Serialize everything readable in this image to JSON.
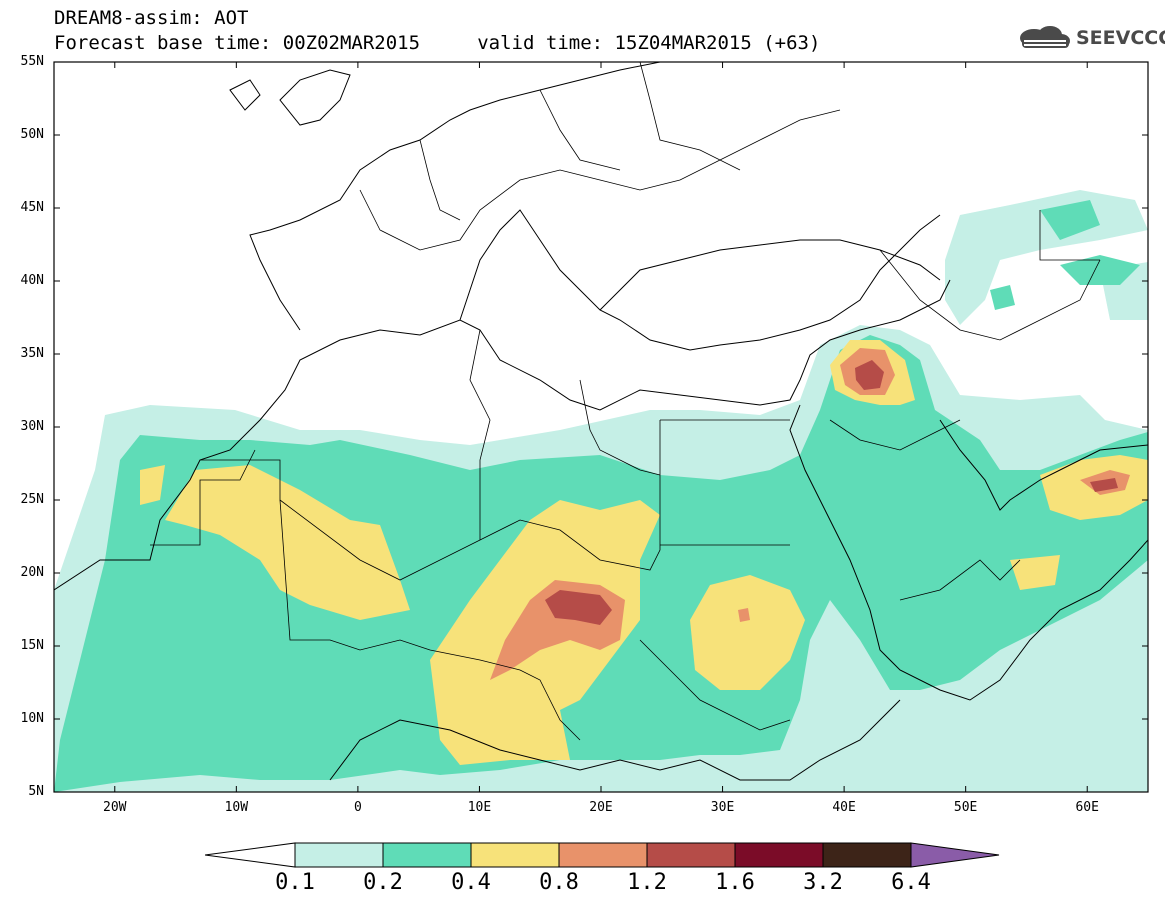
{
  "header": {
    "title_line1": "DREAM8-assim: AOT",
    "title_line2": "Forecast base time: 00Z02MAR2015     valid time: 15Z04MAR2015 (+63)",
    "logo_text": "SEEVCCC",
    "logo_icon": "cloud-stack-icon"
  },
  "map": {
    "lat_labels": [
      "55N",
      "50N",
      "45N",
      "40N",
      "35N",
      "30N",
      "25N",
      "20N",
      "15N",
      "10N",
      "5N"
    ],
    "lon_labels": [
      "20W",
      "10W",
      "0",
      "10E",
      "20E",
      "30E",
      "40E",
      "50E",
      "60E"
    ],
    "lon_range": [
      -25,
      65
    ],
    "lat_range": [
      5,
      55
    ]
  },
  "colorbar": {
    "labels": [
      "0.1",
      "0.2",
      "0.4",
      "0.8",
      "1.2",
      "1.6",
      "3.2",
      "6.4"
    ],
    "colors": [
      "#ffffff",
      "#c5efe6",
      "#5fdcb7",
      "#f7e27a",
      "#e8926a",
      "#b54c48",
      "#7b0c28",
      "#3d2418",
      "#8a5ca8"
    ]
  }
}
